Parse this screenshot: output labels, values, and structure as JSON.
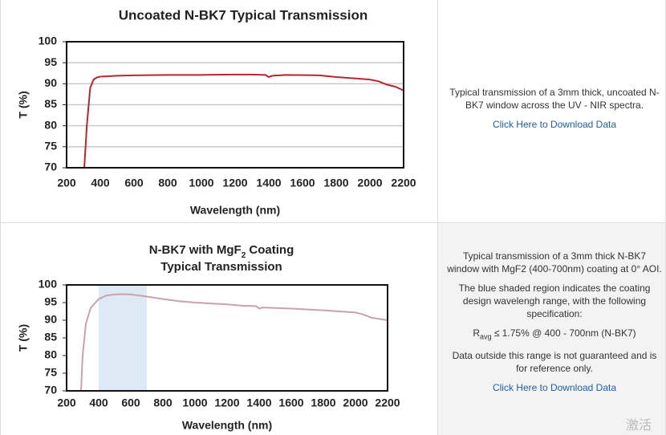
{
  "chart_data": [
    {
      "type": "line",
      "title": "Uncoated N-BK7 Typical Transmission",
      "xlabel": "Wavelength (nm)",
      "ylabel": "T (%)",
      "xlim": [
        200,
        2200
      ],
      "xticks": [
        200,
        400,
        600,
        800,
        1000,
        1200,
        1400,
        1600,
        1800,
        2000,
        2200
      ],
      "ylim": [
        70,
        100
      ],
      "yticks": [
        70,
        75,
        80,
        85,
        90,
        95,
        100
      ],
      "grid": true,
      "x": [
        305,
        320,
        340,
        360,
        380,
        400,
        500,
        600,
        800,
        1000,
        1200,
        1300,
        1380,
        1400,
        1420,
        1500,
        1700,
        1800,
        1900,
        2000,
        2050,
        2100,
        2150,
        2200
      ],
      "series": [
        {
          "color": "#b8262f",
          "values": [
            70,
            80,
            89,
            91,
            91.5,
            91.7,
            91.9,
            92,
            92.1,
            92.1,
            92.2,
            92.2,
            92.1,
            91.6,
            91.9,
            92.1,
            92,
            91.6,
            91.3,
            91,
            90.6,
            89.8,
            89.3,
            88.4
          ]
        }
      ]
    },
    {
      "type": "line",
      "title": {
        "before": "N-BK7 with MgF",
        "sub": "2",
        "after": " Coating",
        "line2": "Typical Transmission"
      },
      "xlabel": "Wavelength (nm)",
      "ylabel": "T (%)",
      "xlim": [
        200,
        2200
      ],
      "xticks": [
        200,
        400,
        600,
        800,
        1000,
        1200,
        1400,
        1600,
        1800,
        2000,
        2200
      ],
      "ylim": [
        70,
        100
      ],
      "yticks": [
        70,
        75,
        80,
        85,
        90,
        95,
        100
      ],
      "grid": false,
      "shaded_range": [
        400,
        700
      ],
      "shade_color": "#dde9f5",
      "x": [
        290,
        300,
        320,
        350,
        400,
        450,
        500,
        550,
        600,
        700,
        800,
        900,
        1000,
        1200,
        1300,
        1380,
        1400,
        1420,
        1600,
        1800,
        2000,
        2050,
        2100,
        2200
      ],
      "series": [
        {
          "color": "#c9a3ab",
          "values": [
            70,
            80,
            89,
            93.5,
            96,
            97,
            97.3,
            97.4,
            97.3,
            96.7,
            96,
            95.4,
            95,
            94.5,
            94.1,
            94,
            93.3,
            93.6,
            93.3,
            92.8,
            92.2,
            91.6,
            90.7,
            90
          ]
        }
      ]
    }
  ],
  "descriptions": [
    {
      "text": "Typical transmission of a 3mm thick, uncoated N-BK7 window across the UV - NIR spectra.",
      "link": "Click Here to Download Data"
    },
    {
      "text": "Typical transmission of a 3mm thick N-BK7 window with MgF2 (400-700nm) coating at 0° AOI.",
      "note": "The blue shaded region indicates the coating design wavelengh range, with the following specification:",
      "spec": {
        "symbol": "R",
        "sub": "avg",
        "text": " ≤ 1.75% @ 400 - 700nm (N-BK7)"
      },
      "disclaimer": "Data outside this range is not guaranteed and is for reference only.",
      "link": "Click Here to Download Data"
    }
  ],
  "watermark": "激活"
}
